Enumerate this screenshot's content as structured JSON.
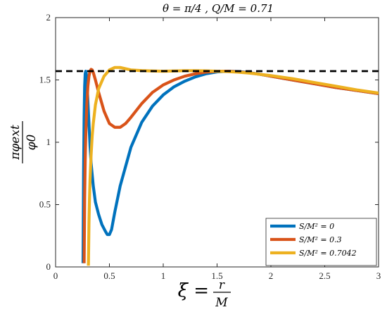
{
  "chart_data": {
    "type": "line",
    "title": "θ = π/4 ,    Q/M = 0.71",
    "xlabel": {
      "main": "ξ =",
      "num": "r",
      "den": "M"
    },
    "ylabel": {
      "num": "πφext",
      "den": "φ0"
    },
    "xlim": [
      0,
      3
    ],
    "ylim": [
      0,
      2
    ],
    "xticks": [
      "0",
      "0.5",
      "1",
      "1.5",
      "2",
      "2.5",
      "3"
    ],
    "yticks": [
      "0",
      "0.5",
      "1",
      "1.5",
      "2"
    ],
    "grid": false,
    "legend_position": "bottom-right",
    "reference_line": {
      "y": 1.5708,
      "style": "dashed",
      "color": "#000000"
    },
    "series": [
      {
        "name": "S/M² = 0",
        "color": "#0072BD",
        "x": [
          0.255,
          0.26,
          0.265,
          0.27,
          0.275,
          0.28,
          0.285,
          0.29,
          0.3,
          0.31,
          0.32,
          0.33,
          0.35,
          0.37,
          0.4,
          0.43,
          0.46,
          0.48,
          0.5,
          0.52,
          0.55,
          0.6,
          0.7,
          0.8,
          0.9,
          1.0,
          1.1,
          1.2,
          1.3,
          1.4,
          1.5,
          1.6,
          1.7,
          1.8,
          1.9,
          2.0,
          2.2,
          2.4,
          2.6,
          2.8,
          3.0
        ],
        "y": [
          0.03,
          0.75,
          1.2,
          1.45,
          1.55,
          1.57,
          1.55,
          1.5,
          1.33,
          1.15,
          0.97,
          0.83,
          0.65,
          0.52,
          0.42,
          0.34,
          0.29,
          0.26,
          0.26,
          0.3,
          0.44,
          0.65,
          0.96,
          1.16,
          1.29,
          1.38,
          1.445,
          1.49,
          1.525,
          1.55,
          1.565,
          1.57,
          1.567,
          1.558,
          1.545,
          1.53,
          1.5,
          1.47,
          1.44,
          1.415,
          1.39
        ]
      },
      {
        "name": "S/M² = 0.3",
        "color": "#D95319",
        "x": [
          0.265,
          0.27,
          0.275,
          0.28,
          0.29,
          0.3,
          0.31,
          0.32,
          0.33,
          0.34,
          0.35,
          0.37,
          0.4,
          0.45,
          0.5,
          0.55,
          0.6,
          0.65,
          0.7,
          0.8,
          0.9,
          1.0,
          1.1,
          1.2,
          1.3,
          1.4,
          1.5,
          1.6,
          1.7,
          1.8,
          1.9,
          2.0,
          2.2,
          2.4,
          2.6,
          2.8,
          3.0
        ],
        "y": [
          0.03,
          0.55,
          0.85,
          1.05,
          1.3,
          1.45,
          1.53,
          1.57,
          1.585,
          1.58,
          1.56,
          1.5,
          1.4,
          1.25,
          1.15,
          1.12,
          1.12,
          1.15,
          1.2,
          1.31,
          1.4,
          1.46,
          1.5,
          1.53,
          1.55,
          1.563,
          1.57,
          1.57,
          1.565,
          1.557,
          1.545,
          1.53,
          1.5,
          1.47,
          1.44,
          1.415,
          1.39
        ]
      },
      {
        "name": "S/M² = 0.7042",
        "color": "#EDB120",
        "x": [
          0.305,
          0.31,
          0.315,
          0.32,
          0.33,
          0.34,
          0.35,
          0.37,
          0.4,
          0.45,
          0.5,
          0.55,
          0.6,
          0.65,
          0.7,
          0.8,
          0.9,
          1.0,
          1.1,
          1.2,
          1.3,
          1.4,
          1.5,
          1.6,
          1.7,
          1.8,
          1.9,
          2.0,
          2.2,
          2.4,
          2.6,
          2.8,
          3.0
        ],
        "y": [
          0.01,
          0.35,
          0.55,
          0.7,
          0.9,
          1.05,
          1.15,
          1.3,
          1.43,
          1.53,
          1.58,
          1.6,
          1.6,
          1.59,
          1.58,
          1.575,
          1.572,
          1.57,
          1.572,
          1.574,
          1.574,
          1.573,
          1.57,
          1.567,
          1.562,
          1.555,
          1.545,
          1.535,
          1.51,
          1.48,
          1.45,
          1.42,
          1.395
        ]
      }
    ]
  }
}
